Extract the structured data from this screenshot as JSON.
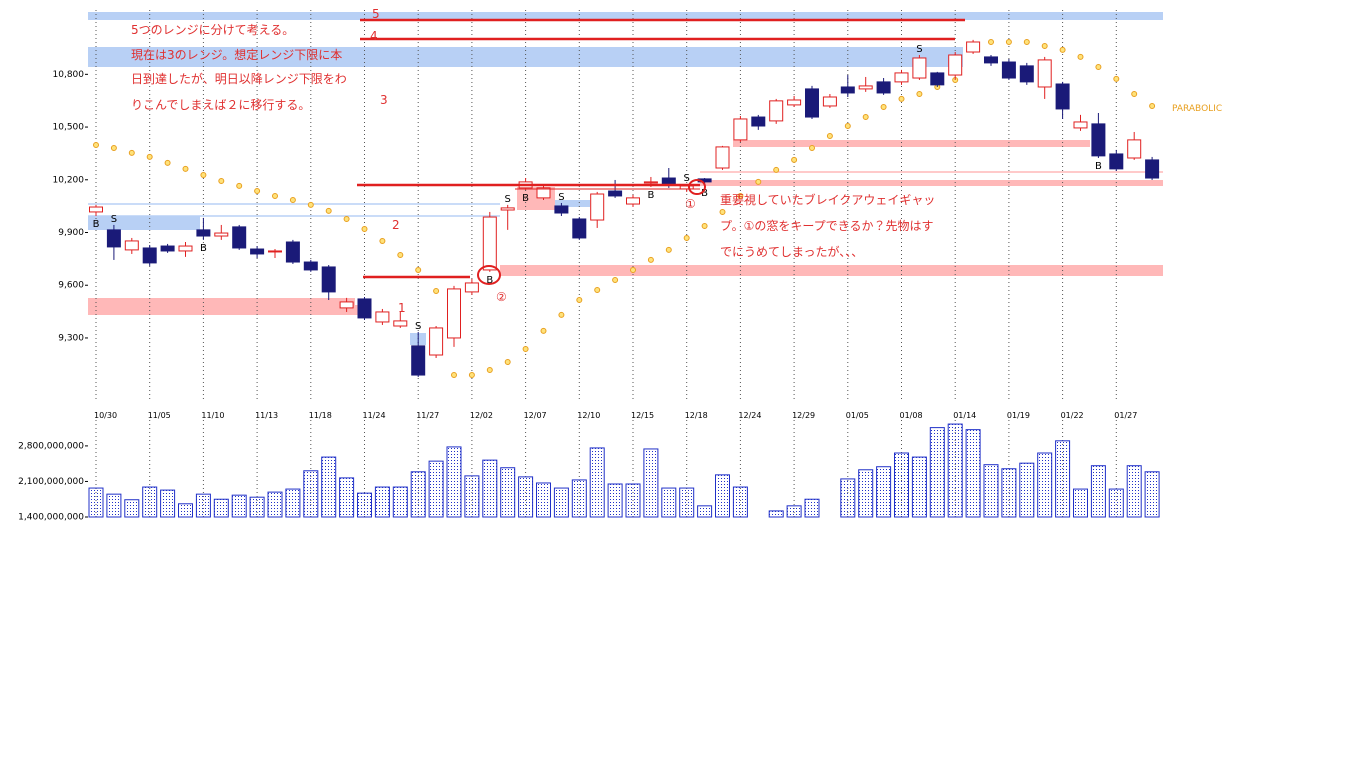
{
  "chart_data": {
    "type": "candlestick",
    "categories": [
      "10/30",
      null,
      null,
      "11/05",
      null,
      null,
      "11/10",
      null,
      null,
      "11/13",
      null,
      null,
      "11/18",
      null,
      null,
      "11/24",
      null,
      null,
      "11/27",
      null,
      null,
      "12/02",
      null,
      null,
      "12/07",
      null,
      null,
      "12/10",
      null,
      null,
      "12/15",
      null,
      null,
      "12/18",
      null,
      null,
      "12/24",
      null,
      null,
      "12/29",
      null,
      null,
      "01/05",
      null,
      null,
      "01/08",
      null,
      null,
      "01/14",
      null,
      null,
      "01/19",
      null,
      null,
      "01/22",
      null,
      null,
      "01/27",
      null,
      null
    ],
    "ohlc": {
      "open": [
        10017,
        9915,
        9801,
        9812,
        9823,
        9795,
        9915,
        9880,
        9932,
        9806,
        9790,
        9846,
        9732,
        9704,
        9471,
        9522,
        9391,
        9368,
        9255,
        9203,
        9300,
        9562,
        9687,
        10028,
        10154,
        10097,
        10051,
        9977,
        9971,
        10136,
        10062,
        10182,
        10210,
        10148,
        10205,
        10267,
        10427,
        10557,
        10535,
        10626,
        10717,
        10620,
        10728,
        10717,
        10757,
        10757,
        10779,
        10808,
        10796,
        10927,
        10899,
        10870,
        10848,
        10728,
        10745,
        10495,
        10518,
        10347,
        10324,
        10313
      ],
      "high": [
        10057,
        9943,
        9869,
        9829,
        9835,
        9846,
        9983,
        9943,
        9943,
        9823,
        9806,
        9858,
        9744,
        9715,
        9528,
        9533,
        9465,
        9448,
        9334,
        9368,
        9596,
        9636,
        10017,
        10057,
        10210,
        10165,
        10068,
        9988,
        10131,
        10199,
        10114,
        10216,
        10267,
        10176,
        10210,
        10393,
        10563,
        10569,
        10660,
        10677,
        10734,
        10688,
        10796,
        10785,
        10779,
        10825,
        10910,
        10814,
        10927,
        10996,
        10910,
        10887,
        10865,
        10899,
        10757,
        10569,
        10580,
        10370,
        10472,
        10330
      ],
      "low": [
        9994,
        9744,
        9778,
        9710,
        9784,
        9761,
        9858,
        9858,
        9801,
        9755,
        9755,
        9721,
        9676,
        9516,
        9448,
        9402,
        9374,
        9357,
        9078,
        9186,
        9249,
        9545,
        9676,
        9915,
        10142,
        10085,
        9994,
        9858,
        9926,
        10097,
        10045,
        10159,
        10154,
        10131,
        10171,
        10256,
        10415,
        10484,
        10518,
        10614,
        10546,
        10609,
        10671,
        10700,
        10683,
        10740,
        10768,
        10728,
        10768,
        10916,
        10848,
        10768,
        10740,
        10660,
        10546,
        10478,
        10324,
        10250,
        10313,
        10199
      ],
      "close": [
        10045,
        9818,
        9852,
        9727,
        9795,
        9823,
        9880,
        9897,
        9812,
        9778,
        9795,
        9732,
        9687,
        9562,
        9505,
        9414,
        9448,
        9397,
        9089,
        9357,
        9579,
        9613,
        9988,
        10040,
        10188,
        10154,
        10011,
        9869,
        10119,
        10108,
        10097,
        10188,
        10171,
        10165,
        10188,
        10387,
        10546,
        10506,
        10649,
        10654,
        10557,
        10671,
        10694,
        10734,
        10694,
        10808,
        10893,
        10740,
        10910,
        10984,
        10865,
        10779,
        10757,
        10882,
        10603,
        10529,
        10336,
        10262,
        10427,
        10210
      ]
    },
    "up_color": "#e02020",
    "down_color": "#1a1a78",
    "parabolic": {
      "name": "PARABOLIC",
      "color": "#e8a020",
      "values": [
        10398,
        10381,
        10353,
        10330,
        10296,
        10262,
        10227,
        10193,
        10165,
        10136,
        10108,
        10085,
        10057,
        10023,
        9977,
        9920,
        9852,
        9772,
        9687,
        9567,
        9089,
        9089,
        9118,
        9163,
        9237,
        9340,
        9431,
        9516,
        9573,
        9630,
        9687,
        9744,
        9801,
        9869,
        9937,
        10017,
        10108,
        10188,
        10256,
        10313,
        10381,
        10449,
        10506,
        10557,
        10614,
        10660,
        10688,
        10728,
        10768,
        10956,
        10984,
        10984,
        10984,
        10961,
        10939,
        10899,
        10842,
        10774,
        10688,
        10620
      ]
    },
    "signals": [
      "B",
      "S",
      null,
      null,
      null,
      null,
      "B",
      null,
      null,
      null,
      null,
      null,
      null,
      null,
      null,
      null,
      null,
      null,
      "S",
      null,
      null,
      null,
      "B",
      "S",
      "B",
      null,
      "S",
      null,
      null,
      null,
      null,
      "B",
      null,
      "S",
      "B",
      null,
      null,
      null,
      null,
      null,
      null,
      null,
      null,
      null,
      null,
      null,
      "S",
      null,
      null,
      null,
      null,
      null,
      null,
      null,
      null,
      null,
      "B",
      null,
      null,
      null
    ],
    "ylim": [
      8947,
      11166
    ],
    "yticks": [
      {
        "value": 9300,
        "label": "9,300"
      },
      {
        "value": 9600,
        "label": "9,600"
      },
      {
        "value": 9900,
        "label": "9,900"
      },
      {
        "value": 10200,
        "label": "10,200"
      },
      {
        "value": 10500,
        "label": "10,500"
      },
      {
        "value": 10800,
        "label": "10,800"
      }
    ],
    "grid": true,
    "volume": {
      "color": "#2030c8",
      "values": [
        1970000000,
        1850000000,
        1740000000,
        1990000000,
        1930000000,
        1660000000,
        1850000000,
        1750000000,
        1830000000,
        1790000000,
        1890000000,
        1950000000,
        2310000000,
        2580000000,
        2170000000,
        1870000000,
        1990000000,
        1990000000,
        2290000000,
        2500000000,
        2780000000,
        2210000000,
        2520000000,
        2370000000,
        2190000000,
        2070000000,
        1970000000,
        2130000000,
        2760000000,
        2050000000,
        2050000000,
        2740000000,
        1970000000,
        1970000000,
        1620000000,
        2230000000,
        1990000000,
        null,
        1520000000,
        1620000000,
        1750000000,
        null,
        2150000000,
        2330000000,
        2390000000,
        2660000000,
        2580000000,
        3160000000,
        3230000000,
        3120000000,
        2430000000,
        2350000000,
        2460000000,
        2660000000,
        2900000000,
        1950000000,
        2410000000,
        1950000000,
        2410000000,
        2290000000
      ],
      "ylim": [
        1400000000,
        3310000000
      ],
      "yticks": [
        {
          "value": 1400000000,
          "label": "1,400,000,000"
        },
        {
          "value": 2100000000,
          "label": "2,100,000,000"
        },
        {
          "value": 2800000000,
          "label": "2,800,000,000"
        }
      ]
    },
    "annotations": {
      "ranges": [
        "5",
        "4",
        "3",
        "2",
        "1"
      ],
      "note": [
        "5つのレンジに分けて考える。",
        "現在は3のレンジ。想定レンジ下限に本",
        "日到達したが、明日以降レンジ下限をわ",
        "りこんでしまえば２に移行する。"
      ],
      "gap_note": [
        "重要視していたブレイクアウェイギャッ",
        "プ。①の窓をキープできるか？先物はす",
        "でにうめてしまったが、、、"
      ],
      "markers": [
        "①",
        "②"
      ]
    }
  }
}
